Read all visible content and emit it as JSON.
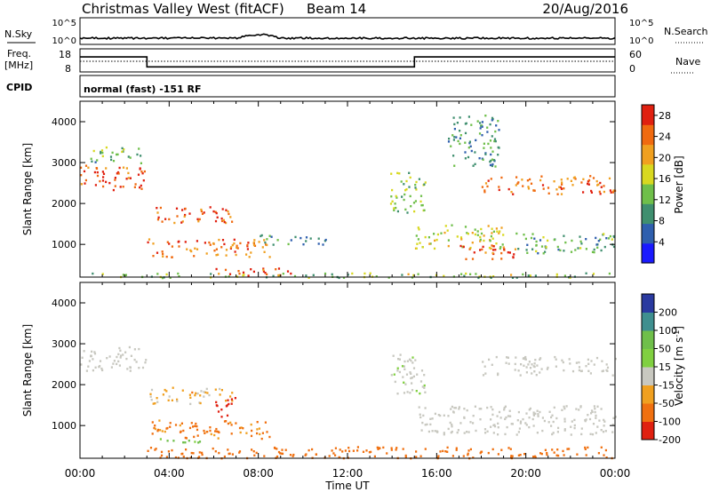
{
  "header": {
    "station": "Christmas Valley West (fitACF)",
    "beam": "Beam 14",
    "date": "20/Aug/2016"
  },
  "status_panels": {
    "nsky_label": "N.Sky",
    "nsky_ticks": [
      "10^5",
      "10^0"
    ],
    "nsearch_label": "N.Search",
    "nsearch_ticks": [
      "10^5",
      "10^0"
    ],
    "freq_label": [
      "Freq.",
      "[MHz]"
    ],
    "freq_ticks": [
      "18",
      "8"
    ],
    "nave_label": "Nave",
    "nave_ticks": [
      "60",
      "0"
    ],
    "cpid_label": "CPID",
    "cpid_text": "normal (fast) -151 RF",
    "freq_mhz_segments": [
      {
        "start_h": 0,
        "end_h": 3,
        "mhz": 14.5
      },
      {
        "start_h": 3,
        "end_h": 15,
        "mhz": 10.2
      },
      {
        "start_h": 15,
        "end_h": 24,
        "mhz": 14.5
      }
    ]
  },
  "chart_data": [
    {
      "type": "heatmap",
      "title": "",
      "xlabel": "Time UT",
      "ylabel": "Slant Range [km]",
      "xticks": [
        "00:00",
        "04:00",
        "08:00",
        "12:00",
        "16:00",
        "20:00",
        "00:00"
      ],
      "xlim": [
        0,
        24
      ],
      "yticks": [
        "1000",
        "2000",
        "3000",
        "4000"
      ],
      "ylim": [
        200,
        4500
      ],
      "colorbar": {
        "label": "Power [dB]",
        "ticks": [
          "4",
          "8",
          "12",
          "16",
          "20",
          "24",
          "28"
        ],
        "range": [
          0,
          30
        ],
        "colors": [
          "#1a1aff",
          "#2f5fae",
          "#3f8f6f",
          "#6fbf4a",
          "#d8d820",
          "#f0a020",
          "#f06a10",
          "#e02010"
        ]
      },
      "echo_regions": [
        {
          "t0": 0.0,
          "t1": 3.0,
          "r0": 2350,
          "r1": 2950,
          "power": 26
        },
        {
          "t0": 0.4,
          "t1": 2.8,
          "r0": 3000,
          "r1": 3400,
          "power": 12
        },
        {
          "t0": 3.0,
          "t1": 6.8,
          "r0": 1550,
          "r1": 1950,
          "power": 25
        },
        {
          "t0": 3.0,
          "t1": 8.5,
          "r0": 700,
          "r1": 1150,
          "power": 24
        },
        {
          "t0": 6.0,
          "t1": 9.5,
          "r0": 250,
          "r1": 450,
          "power": 27
        },
        {
          "t0": 8.0,
          "t1": 11.0,
          "r0": 1000,
          "r1": 1250,
          "power": 9
        },
        {
          "t0": 13.9,
          "t1": 15.5,
          "r0": 1800,
          "r1": 2800,
          "power": 14
        },
        {
          "t0": 15.0,
          "t1": 19.0,
          "r0": 900,
          "r1": 1500,
          "power": 17
        },
        {
          "t0": 17.0,
          "t1": 19.8,
          "r0": 650,
          "r1": 1000,
          "power": 26
        },
        {
          "t0": 18.0,
          "t1": 24.0,
          "r0": 2250,
          "r1": 2700,
          "power": 24
        },
        {
          "t0": 19.5,
          "t1": 24.0,
          "r0": 800,
          "r1": 1300,
          "power": 11
        },
        {
          "t0": 16.5,
          "t1": 18.8,
          "r0": 2900,
          "r1": 4200,
          "power": 9
        },
        {
          "t0": 0.0,
          "t1": 24.0,
          "r0": 200,
          "r1": 320,
          "power": 14
        }
      ]
    },
    {
      "type": "heatmap",
      "title": "",
      "xlabel": "Time UT",
      "ylabel": "Slant Range [km]",
      "xticks": [
        "00:00",
        "04:00",
        "08:00",
        "12:00",
        "16:00",
        "20:00",
        "00:00"
      ],
      "xlim": [
        0,
        24
      ],
      "yticks": [
        "1000",
        "2000",
        "3000",
        "4000"
      ],
      "ylim": [
        200,
        4500
      ],
      "colorbar": {
        "label": "Velocity [m s^-1]",
        "ticks": [
          "200",
          "100",
          "50",
          "15",
          "-15",
          "-50",
          "-100",
          "-200"
        ],
        "colors": [
          "#2a3aa0",
          "#3f8f8f",
          "#6fbf4a",
          "#80d040",
          "#c8c8c0",
          "#f0a020",
          "#f07010",
          "#e02010"
        ]
      },
      "echo_regions": [
        {
          "t0": 0.0,
          "t1": 3.0,
          "r0": 2350,
          "r1": 2950,
          "velocity": 0
        },
        {
          "t0": 3.0,
          "t1": 6.8,
          "r0": 1550,
          "r1": 1950,
          "velocity": -20
        },
        {
          "t0": 3.0,
          "t1": 8.5,
          "r0": 700,
          "r1": 1150,
          "velocity": -40
        },
        {
          "t0": 6.0,
          "t1": 7.0,
          "r0": 1200,
          "r1": 1700,
          "velocity": -150
        },
        {
          "t0": 3.0,
          "t1": 24.0,
          "r0": 220,
          "r1": 500,
          "velocity": -50
        },
        {
          "t0": 13.9,
          "t1": 15.5,
          "r0": 1800,
          "r1": 2800,
          "velocity": 5
        },
        {
          "t0": 15.0,
          "t1": 24.0,
          "r0": 800,
          "r1": 1500,
          "velocity": 0
        },
        {
          "t0": 18.0,
          "t1": 24.0,
          "r0": 2250,
          "r1": 2700,
          "velocity": 0
        },
        {
          "t0": 3.5,
          "t1": 5.5,
          "r0": 600,
          "r1": 750,
          "velocity": 40
        }
      ]
    }
  ]
}
